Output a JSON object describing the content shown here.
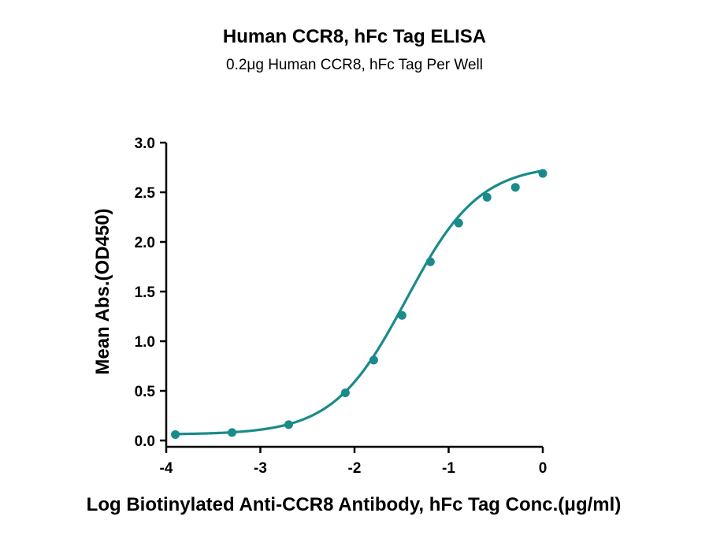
{
  "chart_data": {
    "type": "scatter",
    "title": "Human CCR8, hFc Tag ELISA",
    "subtitle": "0.2μg Human CCR8, hFc Tag Per Well",
    "xlabel": "Log Biotinylated Anti-CCR8 Antibody, hFc Tag Conc.(μg/ml)",
    "ylabel": "Mean Abs.(OD450)",
    "xlim": [
      -4,
      0
    ],
    "ylim": [
      0,
      3.0
    ],
    "x_ticks": [
      -4,
      -3,
      -2,
      -1,
      0
    ],
    "x_tick_labels": [
      "-4",
      "-3",
      "-2",
      "-1",
      "0"
    ],
    "y_ticks": [
      0,
      0.5,
      1.0,
      1.5,
      2.0,
      2.5,
      3.0
    ],
    "y_tick_labels": [
      "0.0",
      "0.5",
      "1.0",
      "1.5",
      "2.0",
      "2.5",
      "3.0"
    ],
    "grid": false,
    "color": "#1a8a8a",
    "series": [
      {
        "x": [
          -3.903,
          -3.301,
          -2.699,
          -2.097,
          -1.796,
          -1.495,
          -1.194,
          -0.893,
          -0.592,
          -0.291,
          0.0
        ],
        "y": [
          0.06,
          0.08,
          0.16,
          0.48,
          0.81,
          1.26,
          1.8,
          2.19,
          2.45,
          2.55,
          2.69
        ]
      }
    ],
    "fit": {
      "model": "4PL",
      "bottom": 0.06,
      "top": 2.78,
      "log_ec50": -1.45,
      "hill": 1.12
    }
  }
}
